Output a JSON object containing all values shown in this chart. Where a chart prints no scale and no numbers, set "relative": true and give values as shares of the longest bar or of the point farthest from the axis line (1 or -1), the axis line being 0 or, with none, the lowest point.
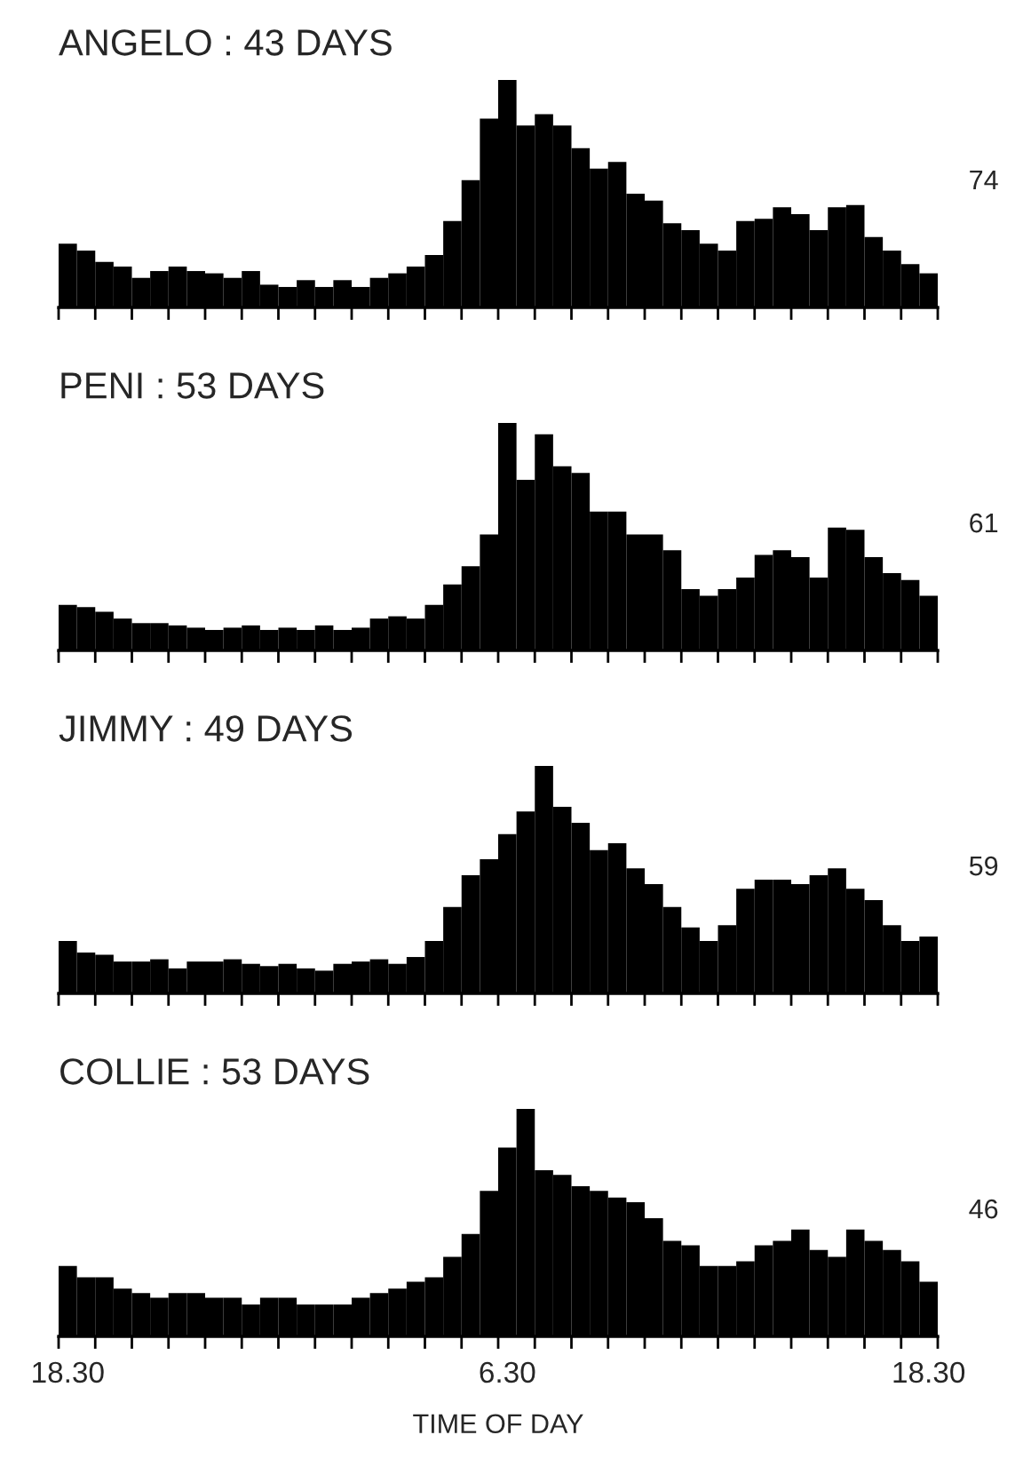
{
  "chart_data": [
    {
      "type": "bar",
      "title": "ANGELO : 43 DAYS",
      "relative": true,
      "color": "#000000",
      "annotations": [
        "74"
      ],
      "categories": [
        null,
        null,
        null,
        null,
        null,
        null,
        null,
        null,
        null,
        null,
        null,
        null,
        null,
        null,
        null,
        null,
        null,
        null,
        null,
        null,
        null,
        null,
        null,
        null,
        null,
        null,
        null,
        null,
        null,
        null,
        null,
        null,
        null,
        null,
        null,
        null,
        null,
        null,
        null,
        null,
        null,
        null,
        null,
        null,
        null,
        null,
        null,
        null
      ],
      "values": [
        0.28,
        0.25,
        0.2,
        0.18,
        0.13,
        0.16,
        0.18,
        0.16,
        0.15,
        0.13,
        0.16,
        0.1,
        0.09,
        0.12,
        0.09,
        0.12,
        0.09,
        0.13,
        0.15,
        0.18,
        0.23,
        0.38,
        0.56,
        0.83,
        1.0,
        0.8,
        0.85,
        0.8,
        0.7,
        0.61,
        0.64,
        0.5,
        0.47,
        0.37,
        0.34,
        0.28,
        0.25,
        0.38,
        0.39,
        0.44,
        0.41,
        0.34,
        0.44,
        0.45,
        0.31,
        0.25,
        0.19,
        0.15
      ]
    },
    {
      "type": "bar",
      "title": "PENI : 53 DAYS",
      "relative": true,
      "color": "#000000",
      "annotations": [
        "61"
      ],
      "categories": [
        null,
        null,
        null,
        null,
        null,
        null,
        null,
        null,
        null,
        null,
        null,
        null,
        null,
        null,
        null,
        null,
        null,
        null,
        null,
        null,
        null,
        null,
        null,
        null,
        null,
        null,
        null,
        null,
        null,
        null,
        null,
        null,
        null,
        null,
        null,
        null,
        null,
        null,
        null,
        null,
        null,
        null,
        null,
        null,
        null,
        null,
        null,
        null
      ],
      "values": [
        0.2,
        0.19,
        0.17,
        0.14,
        0.12,
        0.12,
        0.11,
        0.1,
        0.09,
        0.1,
        0.11,
        0.09,
        0.1,
        0.09,
        0.11,
        0.09,
        0.1,
        0.14,
        0.15,
        0.14,
        0.2,
        0.29,
        0.37,
        0.51,
        1.0,
        0.75,
        0.95,
        0.81,
        0.78,
        0.61,
        0.61,
        0.51,
        0.51,
        0.44,
        0.27,
        0.24,
        0.27,
        0.32,
        0.42,
        0.44,
        0.41,
        0.32,
        0.54,
        0.53,
        0.41,
        0.34,
        0.31,
        0.24
      ]
    },
    {
      "type": "bar",
      "title": "JIMMY : 49 DAYS",
      "relative": true,
      "color": "#000000",
      "annotations": [
        "59"
      ],
      "categories": [
        null,
        null,
        null,
        null,
        null,
        null,
        null,
        null,
        null,
        null,
        null,
        null,
        null,
        null,
        null,
        null,
        null,
        null,
        null,
        null,
        null,
        null,
        null,
        null,
        null,
        null,
        null,
        null,
        null,
        null,
        null,
        null,
        null,
        null,
        null,
        null,
        null,
        null,
        null,
        null,
        null,
        null,
        null,
        null,
        null,
        null,
        null,
        null
      ],
      "values": [
        0.23,
        0.18,
        0.17,
        0.14,
        0.14,
        0.15,
        0.11,
        0.14,
        0.14,
        0.15,
        0.13,
        0.12,
        0.13,
        0.11,
        0.1,
        0.13,
        0.14,
        0.15,
        0.13,
        0.16,
        0.23,
        0.38,
        0.52,
        0.59,
        0.7,
        0.8,
        1.0,
        0.82,
        0.75,
        0.63,
        0.66,
        0.55,
        0.48,
        0.38,
        0.29,
        0.23,
        0.3,
        0.46,
        0.5,
        0.5,
        0.48,
        0.52,
        0.55,
        0.46,
        0.41,
        0.3,
        0.23,
        0.25
      ]
    },
    {
      "type": "bar",
      "title": "COLLIE : 53 DAYS",
      "xlabel": "TIME OF DAY",
      "relative": true,
      "color": "#000000",
      "annotations": [
        "46"
      ],
      "categories": [
        "18.30",
        null,
        null,
        null,
        null,
        null,
        null,
        null,
        null,
        null,
        null,
        null,
        null,
        null,
        null,
        null,
        null,
        null,
        null,
        null,
        null,
        null,
        null,
        null,
        "6.30",
        null,
        null,
        null,
        null,
        null,
        null,
        null,
        null,
        null,
        null,
        null,
        null,
        null,
        null,
        null,
        null,
        null,
        null,
        null,
        null,
        null,
        null,
        "18.30"
      ],
      "values": [
        0.31,
        0.26,
        0.26,
        0.21,
        0.19,
        0.17,
        0.19,
        0.19,
        0.17,
        0.17,
        0.14,
        0.17,
        0.17,
        0.14,
        0.14,
        0.14,
        0.17,
        0.19,
        0.21,
        0.24,
        0.26,
        0.35,
        0.45,
        0.64,
        0.83,
        1.0,
        0.73,
        0.71,
        0.66,
        0.64,
        0.61,
        0.59,
        0.52,
        0.42,
        0.4,
        0.31,
        0.31,
        0.33,
        0.4,
        0.42,
        0.47,
        0.38,
        0.35,
        0.47,
        0.42,
        0.38,
        0.33,
        0.24
      ]
    }
  ]
}
